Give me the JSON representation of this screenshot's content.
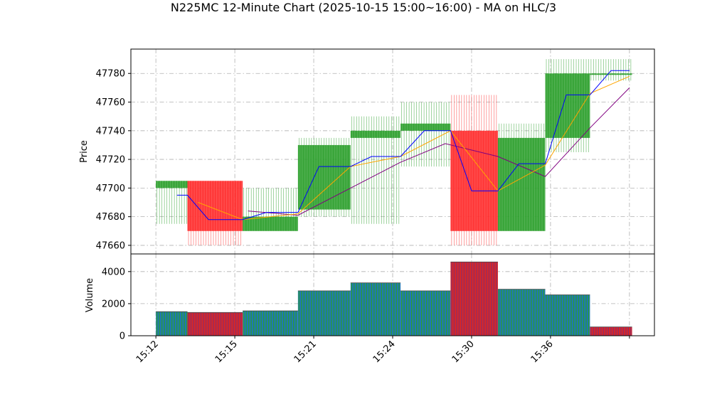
{
  "chart_data": {
    "type": "candlestick",
    "title": "N225MC 12-Minute Chart (2025-10-15 15:00~16:00) - MA on HLC/3",
    "price_ylabel": "Price",
    "volume_ylabel": "Volume",
    "price_ylim": [
      47654,
      47797
    ],
    "volume_ylim": [
      0,
      5100
    ],
    "price_yticks": [
      47660,
      47680,
      47700,
      47720,
      47740,
      47760,
      47780
    ],
    "volume_yticks": [
      0,
      2000,
      4000
    ],
    "x_ticks": [
      {
        "t": 0,
        "label": "15:12"
      },
      {
        "t": 3,
        "label": "15:15"
      },
      {
        "t": 6,
        "label": "15:21"
      },
      {
        "t": 9,
        "label": "15:24"
      },
      {
        "t": 12,
        "label": "15:30"
      },
      {
        "t": 15,
        "label": "15:36"
      },
      {
        "t": 18,
        "label": ""
      }
    ],
    "x_range": [
      -0.95,
      18.95
    ],
    "grid": true,
    "colors": {
      "up": "#2ca02c",
      "down": "#ff2b2b",
      "ma_short": "#0000ff",
      "ma_mid": "#ffa500",
      "ma_long": "#800080",
      "volume_up": "#1f77b4",
      "volume_down": "#d62728"
    },
    "candles": [
      {
        "t0": 0.0,
        "t1": 1.2,
        "open": 47700,
        "high": 47705,
        "low": 47675,
        "close": 47705
      },
      {
        "t0": 1.2,
        "t1": 3.3,
        "open": 47705,
        "high": 47705,
        "low": 47660,
        "close": 47670
      },
      {
        "t0": 3.3,
        "t1": 5.4,
        "open": 47670,
        "high": 47700,
        "low": 47670,
        "close": 47680
      },
      {
        "t0": 5.4,
        "t1": 7.4,
        "open": 47685,
        "high": 47735,
        "low": 47680,
        "close": 47730
      },
      {
        "t0": 7.4,
        "t1": 9.3,
        "open": 47735,
        "high": 47750,
        "low": 47675,
        "close": 47740
      },
      {
        "t0": 9.3,
        "t1": 11.2,
        "open": 47740,
        "high": 47760,
        "low": 47715,
        "close": 47745
      },
      {
        "t0": 11.2,
        "t1": 13.0,
        "open": 47740,
        "high": 47765,
        "low": 47660,
        "close": 47670
      },
      {
        "t0": 13.0,
        "t1": 14.8,
        "open": 47670,
        "high": 47745,
        "low": 47670,
        "close": 47735
      },
      {
        "t0": 14.8,
        "t1": 16.5,
        "open": 47735,
        "high": 47790,
        "low": 47725,
        "close": 47780
      },
      {
        "t0": 16.5,
        "t1": 18.1,
        "open": 47780,
        "high": 47790,
        "low": 47775,
        "close": 47780
      }
    ],
    "volume": [
      {
        "t0": 0.0,
        "t1": 1.2,
        "value": 1500,
        "dir": "up"
      },
      {
        "t0": 1.2,
        "t1": 3.3,
        "value": 1450,
        "dir": "down"
      },
      {
        "t0": 3.3,
        "t1": 5.4,
        "value": 1550,
        "dir": "up"
      },
      {
        "t0": 5.4,
        "t1": 7.4,
        "value": 2800,
        "dir": "up"
      },
      {
        "t0": 7.4,
        "t1": 9.3,
        "value": 3300,
        "dir": "up"
      },
      {
        "t0": 9.3,
        "t1": 11.2,
        "value": 2800,
        "dir": "up"
      },
      {
        "t0": 11.2,
        "t1": 13.0,
        "value": 4600,
        "dir": "down"
      },
      {
        "t0": 13.0,
        "t1": 14.8,
        "value": 2900,
        "dir": "up"
      },
      {
        "t0": 14.8,
        "t1": 16.5,
        "value": 2550,
        "dir": "up"
      },
      {
        "t0": 16.5,
        "t1": 18.1,
        "value": 550,
        "dir": "down"
      }
    ],
    "ma_short": [
      {
        "t": 0.8,
        "v": 47695
      },
      {
        "t": 1.2,
        "v": 47695
      },
      {
        "t": 2.0,
        "v": 47678
      },
      {
        "t": 3.3,
        "v": 47678
      },
      {
        "t": 4.2,
        "v": 47683
      },
      {
        "t": 5.4,
        "v": 47683
      },
      {
        "t": 6.2,
        "v": 47715
      },
      {
        "t": 7.4,
        "v": 47715
      },
      {
        "t": 8.2,
        "v": 47722
      },
      {
        "t": 9.3,
        "v": 47722
      },
      {
        "t": 10.2,
        "v": 47740
      },
      {
        "t": 11.2,
        "v": 47740
      },
      {
        "t": 12.0,
        "v": 47698
      },
      {
        "t": 13.0,
        "v": 47698
      },
      {
        "t": 13.8,
        "v": 47717
      },
      {
        "t": 14.8,
        "v": 47717
      },
      {
        "t": 15.6,
        "v": 47765
      },
      {
        "t": 16.5,
        "v": 47765
      },
      {
        "t": 17.3,
        "v": 47782
      },
      {
        "t": 18.0,
        "v": 47782
      }
    ],
    "ma_mid": [
      {
        "t": 1.6,
        "v": 47690
      },
      {
        "t": 3.3,
        "v": 47678
      },
      {
        "t": 5.4,
        "v": 47682
      },
      {
        "t": 7.4,
        "v": 47715
      },
      {
        "t": 9.3,
        "v": 47722
      },
      {
        "t": 11.2,
        "v": 47740
      },
      {
        "t": 13.0,
        "v": 47698
      },
      {
        "t": 14.8,
        "v": 47716
      },
      {
        "t": 16.5,
        "v": 47766
      },
      {
        "t": 18.0,
        "v": 47778
      }
    ],
    "ma_long": [
      {
        "t": 3.5,
        "v": 47684
      },
      {
        "t": 5.4,
        "v": 47681
      },
      {
        "t": 7.4,
        "v": 47700
      },
      {
        "t": 9.3,
        "v": 47718
      },
      {
        "t": 11.0,
        "v": 47731
      },
      {
        "t": 13.0,
        "v": 47722
      },
      {
        "t": 14.8,
        "v": 47708
      },
      {
        "t": 16.5,
        "v": 47742
      },
      {
        "t": 18.0,
        "v": 47770
      }
    ]
  }
}
